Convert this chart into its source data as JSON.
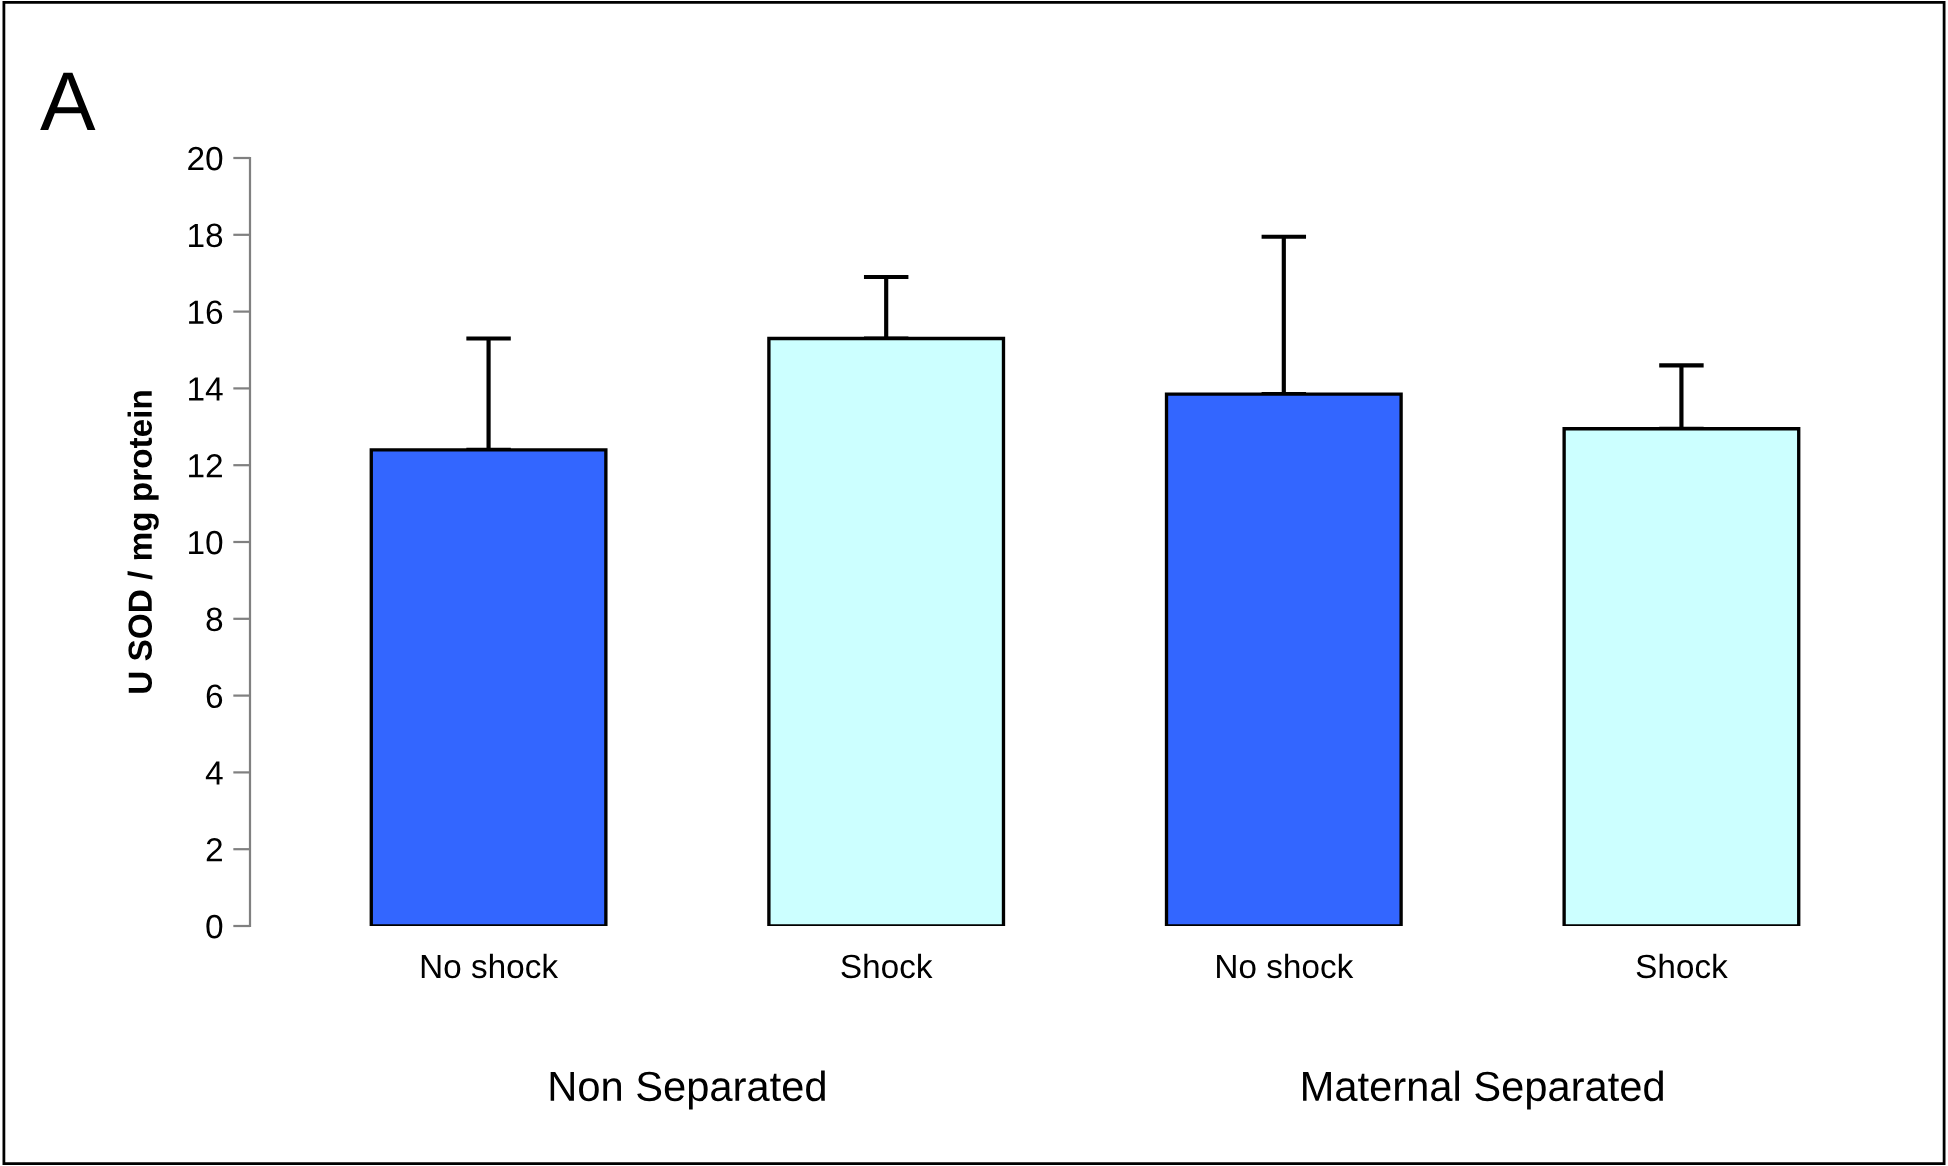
{
  "chart_data": {
    "type": "bar",
    "title": "A",
    "ylabel": "U SOD / mg protein",
    "categories": [
      "No shock",
      "Shock",
      "No shock",
      "Shock"
    ],
    "values": [
      12.4,
      15.3,
      13.85,
      12.95
    ],
    "colors": [
      "#3366ff",
      "#ccffff",
      "#3366ff",
      "#ccffff"
    ],
    "errors": [
      [
        12.4,
        15.3
      ],
      [
        15.3,
        16.9
      ],
      [
        13.85,
        17.95
      ],
      [
        12.95,
        14.6
      ]
    ],
    "annotations": [
      "Non Separated",
      "Maternal Separated"
    ],
    "ylim": [
      0,
      20
    ],
    "yticks": [
      0,
      2,
      4,
      6,
      8,
      10,
      12,
      14,
      16,
      18,
      20
    ],
    "grid": false,
    "legend": false
  }
}
